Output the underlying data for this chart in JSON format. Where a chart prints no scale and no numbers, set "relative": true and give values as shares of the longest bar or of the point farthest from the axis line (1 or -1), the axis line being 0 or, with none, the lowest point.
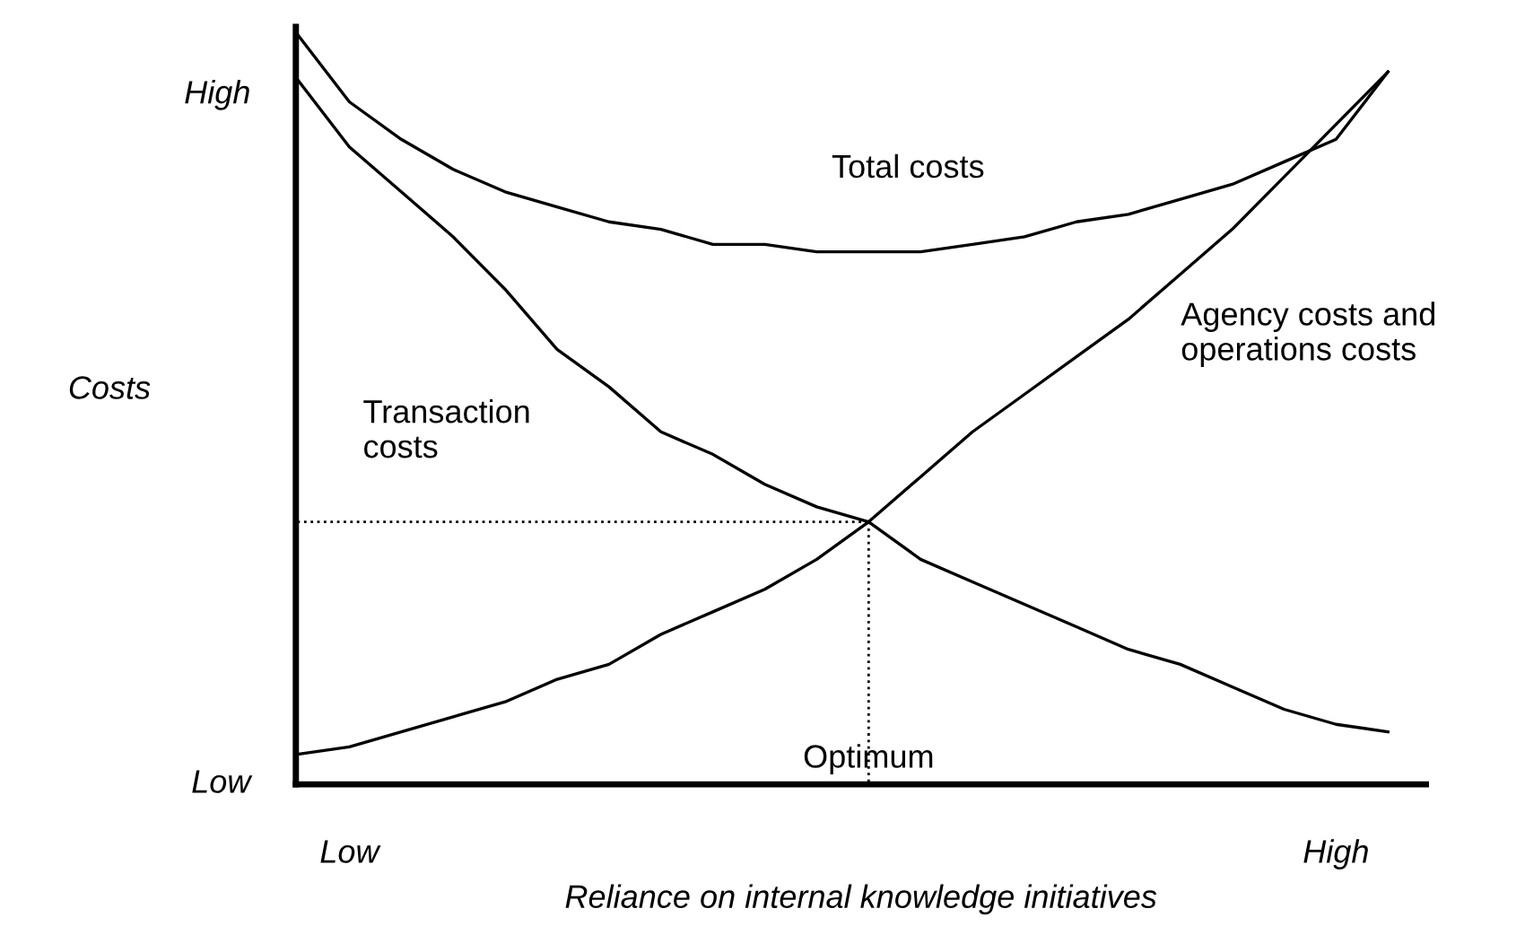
{
  "chart_data": {
    "type": "line",
    "relative": true,
    "xlabel": "Reliance on internal knowledge initiatives",
    "ylabel": "Costs",
    "categories": [
      null,
      "Low",
      null,
      null,
      null,
      null,
      null,
      null,
      null,
      null,
      null,
      null,
      null,
      null,
      null,
      null,
      null,
      null,
      null,
      null,
      "High",
      null
    ],
    "legend": false,
    "marker": "none",
    "line_style": "solid",
    "annotations": [
      "Optimum",
      "Low",
      "High"
    ],
    "series": [
      {
        "name": "Total costs",
        "color": "#000000",
        "values": [
          1.0,
          0.91,
          0.86,
          0.82,
          0.79,
          0.77,
          0.75,
          0.74,
          0.72,
          0.72,
          0.71,
          0.71,
          0.71,
          0.72,
          0.73,
          0.75,
          0.76,
          0.78,
          0.8,
          0.83,
          0.86,
          0.95
        ]
      },
      {
        "name": "Transaction\ncosts",
        "color": "#000000",
        "values": [
          0.94,
          0.85,
          0.79,
          0.73,
          0.66,
          0.58,
          0.53,
          0.47,
          0.44,
          0.4,
          0.37,
          0.35,
          0.3,
          0.27,
          0.24,
          0.21,
          0.18,
          0.16,
          0.13,
          0.1,
          0.08,
          0.07
        ]
      },
      {
        "name": "Agency costs and\noperations costs",
        "color": "#000000",
        "values": [
          0.04,
          0.05,
          0.07,
          0.09,
          0.11,
          0.14,
          0.16,
          0.2,
          0.23,
          0.26,
          0.3,
          0.35,
          0.41,
          0.47,
          0.52,
          0.57,
          0.62,
          0.68,
          0.74,
          0.81,
          0.88,
          0.95
        ]
      },
      {
        "color": "#000000",
        "line_style": "dotted",
        "values": [
          0.35,
          0.35,
          0.35,
          0.35,
          0.35,
          0.35,
          0.35,
          0.35,
          0.35,
          0.35,
          0.35,
          0.35,
          null,
          null,
          null,
          null,
          null,
          null,
          null,
          null,
          null,
          null
        ]
      }
    ]
  }
}
